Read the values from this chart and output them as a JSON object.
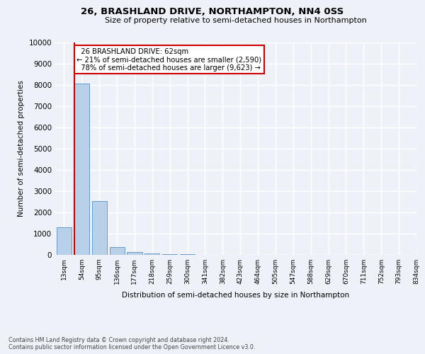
{
  "title": "26, BRASHLAND DRIVE, NORTHAMPTON, NN4 0SS",
  "subtitle": "Size of property relative to semi-detached houses in Northampton",
  "xlabel": "Distribution of semi-detached houses by size in Northampton",
  "ylabel": "Number of semi-detached properties",
  "bar_values": [
    1300,
    8050,
    2550,
    375,
    150,
    75,
    50,
    25,
    0,
    0,
    0,
    0,
    0,
    0,
    0,
    0,
    0,
    0,
    0,
    0
  ],
  "bin_labels": [
    "13sqm",
    "54sqm",
    "95sqm",
    "136sqm",
    "177sqm",
    "218sqm",
    "259sqm",
    "300sqm",
    "341sqm",
    "382sqm",
    "423sqm",
    "464sqm",
    "505sqm",
    "547sqm",
    "588sqm",
    "629sqm",
    "670sqm",
    "711sqm",
    "752sqm",
    "793sqm",
    "834sqm"
  ],
  "ylim": [
    0,
    10000
  ],
  "yticks": [
    0,
    1000,
    2000,
    3000,
    4000,
    5000,
    6000,
    7000,
    8000,
    9000,
    10000
  ],
  "bar_color": "#b8d0e8",
  "bar_edge_color": "#6699cc",
  "property_line_color": "#cc0000",
  "property_bar_index": 1,
  "annotation_text": "  26 BRASHLAND DRIVE: 62sqm\n← 21% of semi-detached houses are smaller (2,590)\n  78% of semi-detached houses are larger (9,623) →",
  "annotation_box_color": "#ffffff",
  "annotation_box_edge": "#cc0000",
  "footer_line1": "Contains HM Land Registry data © Crown copyright and database right 2024.",
  "footer_line2": "Contains public sector information licensed under the Open Government Licence v3.0.",
  "background_color": "#eef2f8",
  "grid_color": "#ffffff"
}
